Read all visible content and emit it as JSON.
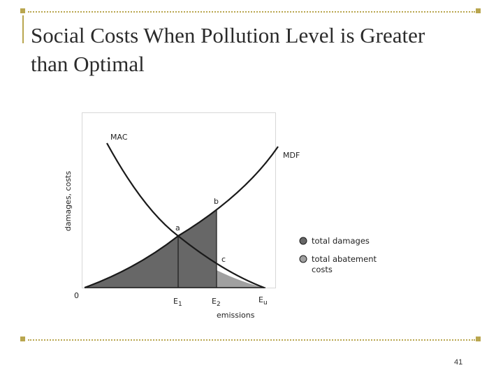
{
  "slide": {
    "title": "Social Costs When Pollution Level is Greater than Optimal",
    "page_number": "41"
  },
  "diagram": {
    "y_axis_label": "damages, costs",
    "x_axis_label": "emissions",
    "origin_label": "0",
    "curves": {
      "mac": "MAC",
      "mdf": "MDF"
    },
    "points": {
      "a": "a",
      "b": "b",
      "c": "c"
    },
    "ticks": [
      {
        "base": "E",
        "sub": "1"
      },
      {
        "base": "E",
        "sub": "2"
      },
      {
        "base": "E",
        "sub": "u"
      }
    ],
    "legend": [
      {
        "label_lines": [
          "total damages"
        ],
        "color": "#676767"
      },
      {
        "label_lines": [
          "total abatement",
          "costs"
        ],
        "color": "#a0a0a0"
      }
    ],
    "colors": {
      "total_damages": "#676767",
      "total_abatement_costs": "#a0a0a0",
      "curve": "#1a1a1a",
      "accent": "#b9a64f"
    }
  }
}
